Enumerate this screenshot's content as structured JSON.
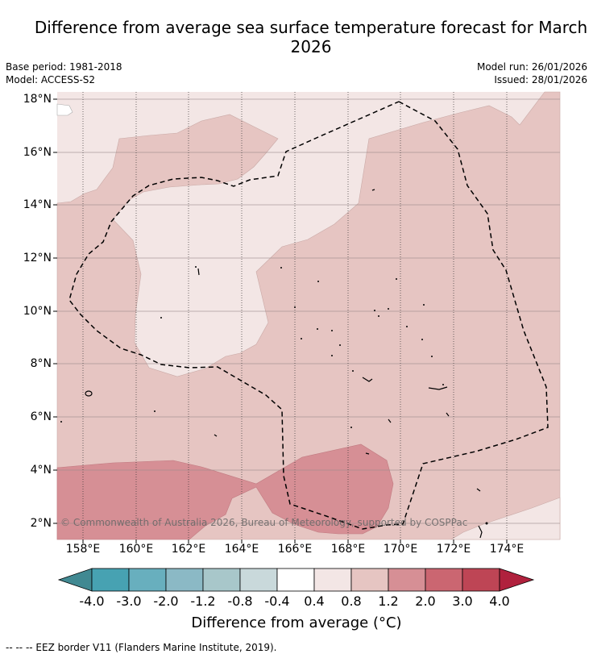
{
  "title": "Difference from average sea surface temperature forecast for March 2026",
  "meta": {
    "base_period": "Base period: 1981-2018",
    "model": "Model: ACCESS-S2",
    "model_run": "Model run: 26/01/2026",
    "issued": "Issued: 28/01/2026"
  },
  "map": {
    "lat_labels": [
      "18°N",
      "16°N",
      "14°N",
      "12°N",
      "10°N",
      "8°N",
      "6°N",
      "4°N",
      "2°N"
    ],
    "lon_labels": [
      "158°E",
      "160°E",
      "162°E",
      "164°E",
      "166°E",
      "168°E",
      "170°E",
      "172°E",
      "174°E"
    ],
    "copyright": "© Commonwealth of Australia 2026, Bureau of Meteorology, supported by COSPPac",
    "colors": {
      "c04_08": "#f3e6e5",
      "c08_12": "#e6c5c2",
      "c12_20": "#d68f95"
    }
  },
  "colorbar": {
    "ticks": [
      "-4.0",
      "-3.0",
      "-2.0",
      "-1.2",
      "-0.8",
      "-0.4",
      "0.4",
      "0.8",
      "1.2",
      "2.0",
      "3.0",
      "4.0"
    ],
    "colors": [
      "#418992",
      "#47a2b2",
      "#68afbe",
      "#8bb9c5",
      "#a8c7ca",
      "#c9d9db",
      "#ffffff",
      "#f3e6e5",
      "#e6c5c2",
      "#d68f95",
      "#cb6671",
      "#be4555",
      "#b0213d"
    ],
    "label": "Difference from average (°C)"
  },
  "footer": "-- -- -- EEZ border V11 (Flanders Marine Institute, 2019)."
}
